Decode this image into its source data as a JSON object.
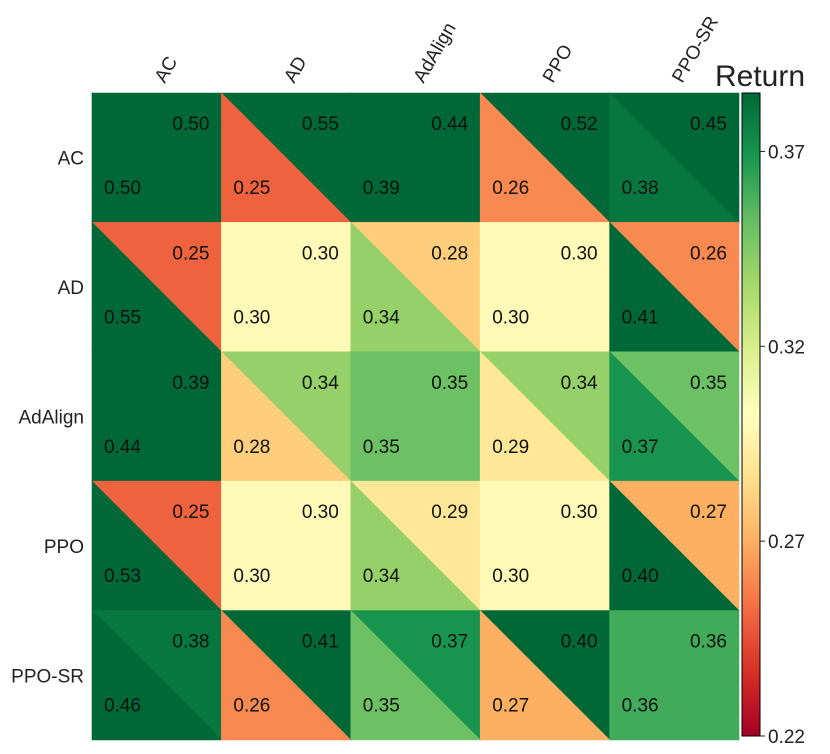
{
  "chart_data": {
    "type": "heatmap",
    "subtype": "split-triangle matrix",
    "rows": [
      "AC",
      "AD",
      "AdAlign",
      "PPO",
      "PPO-SR"
    ],
    "columns": [
      "AC",
      "AD",
      "AdAlign",
      "PPO",
      "PPO-SR"
    ],
    "upper_right_values": [
      [
        0.5,
        0.55,
        0.44,
        0.52,
        0.45
      ],
      [
        0.25,
        0.3,
        0.28,
        0.3,
        0.26
      ],
      [
        0.39,
        0.34,
        0.35,
        0.34,
        0.35
      ],
      [
        0.25,
        0.3,
        0.29,
        0.3,
        0.27
      ],
      [
        0.38,
        0.41,
        0.37,
        0.4,
        0.36
      ]
    ],
    "lower_left_values": [
      [
        0.5,
        0.25,
        0.39,
        0.26,
        0.38
      ],
      [
        0.55,
        0.3,
        0.34,
        0.3,
        0.41
      ],
      [
        0.44,
        0.28,
        0.35,
        0.29,
        0.37
      ],
      [
        0.53,
        0.3,
        0.34,
        0.3,
        0.4
      ],
      [
        0.46,
        0.26,
        0.35,
        0.27,
        0.36
      ]
    ],
    "colorbar": {
      "title": "Return",
      "min": 0.22,
      "max": 0.385,
      "ticks": [
        "0.37",
        "0.32",
        "0.27",
        "0.22"
      ],
      "colormap": "RdYlGn"
    },
    "colors": {
      "RdYlGn": [
        "#a50026",
        "#d73027",
        "#f46d43",
        "#fdae61",
        "#fee08b",
        "#ffffbf",
        "#d9ef8b",
        "#a6d96a",
        "#66bd63",
        "#1a9850",
        "#006837"
      ]
    }
  }
}
